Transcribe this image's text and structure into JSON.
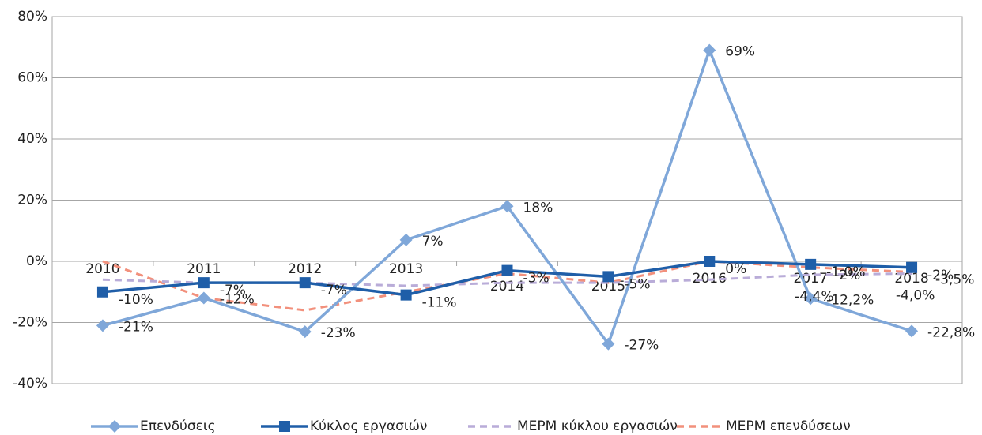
{
  "chart_data": {
    "type": "line",
    "categories": [
      "2010",
      "2011",
      "2012",
      "2013",
      "2014",
      "2015",
      "2016",
      "2017",
      "2018"
    ],
    "series": [
      {
        "name": "Επενδύσεις",
        "color": "#7fa7d9",
        "marker": "diamond",
        "dash": false,
        "values": [
          -21,
          -12,
          -23,
          7,
          18,
          -27,
          69,
          -12.2,
          -22.8
        ],
        "value_labels": [
          "-21%",
          "-12%",
          "-23%",
          "7%",
          "18%",
          "-27%",
          "69%",
          "-12,2%",
          "-22,8%"
        ]
      },
      {
        "name": "Κύκλος εργασιών",
        "color": "#1f5ea8",
        "marker": "square",
        "dash": false,
        "values": [
          -10,
          -7,
          -7,
          -11,
          -3,
          -5,
          0,
          -1.0,
          -2
        ],
        "value_labels": [
          "-10%",
          "-7%",
          "-7%",
          "-11%",
          "-3%",
          "-5%",
          "0%",
          "-1,0%",
          "-2%"
        ]
      },
      {
        "name": "ΜΕΡΜ κύκλου εργασιών",
        "color": "#b9acd8",
        "marker": null,
        "dash": true,
        "values": [
          -6,
          -7,
          -7,
          -8,
          -7,
          -7,
          -6,
          -4.4,
          -4.0
        ],
        "value_labels": [
          null,
          null,
          null,
          null,
          null,
          null,
          null,
          "-4,4%",
          "-4,0%"
        ]
      },
      {
        "name": "ΜΕΡΜ επενδύσεων",
        "color": "#f2907c",
        "marker": null,
        "dash": true,
        "values": [
          0,
          -12,
          -16,
          -10,
          -4,
          -7,
          0,
          -2,
          -3.5
        ],
        "value_labels": [
          null,
          null,
          null,
          null,
          null,
          null,
          null,
          "-2%",
          "-3,5%"
        ]
      }
    ],
    "ylim": [
      -40,
      80
    ],
    "yticks": [
      {
        "value": -40,
        "label": "-40%"
      },
      {
        "value": -20,
        "label": "-20%"
      },
      {
        "value": 0,
        "label": "0%"
      },
      {
        "value": 20,
        "label": "20%"
      },
      {
        "value": 40,
        "label": "40%"
      },
      {
        "value": 60,
        "label": "60%"
      },
      {
        "value": 80,
        "label": "80%"
      }
    ],
    "grid": true,
    "legend": "bottom"
  }
}
